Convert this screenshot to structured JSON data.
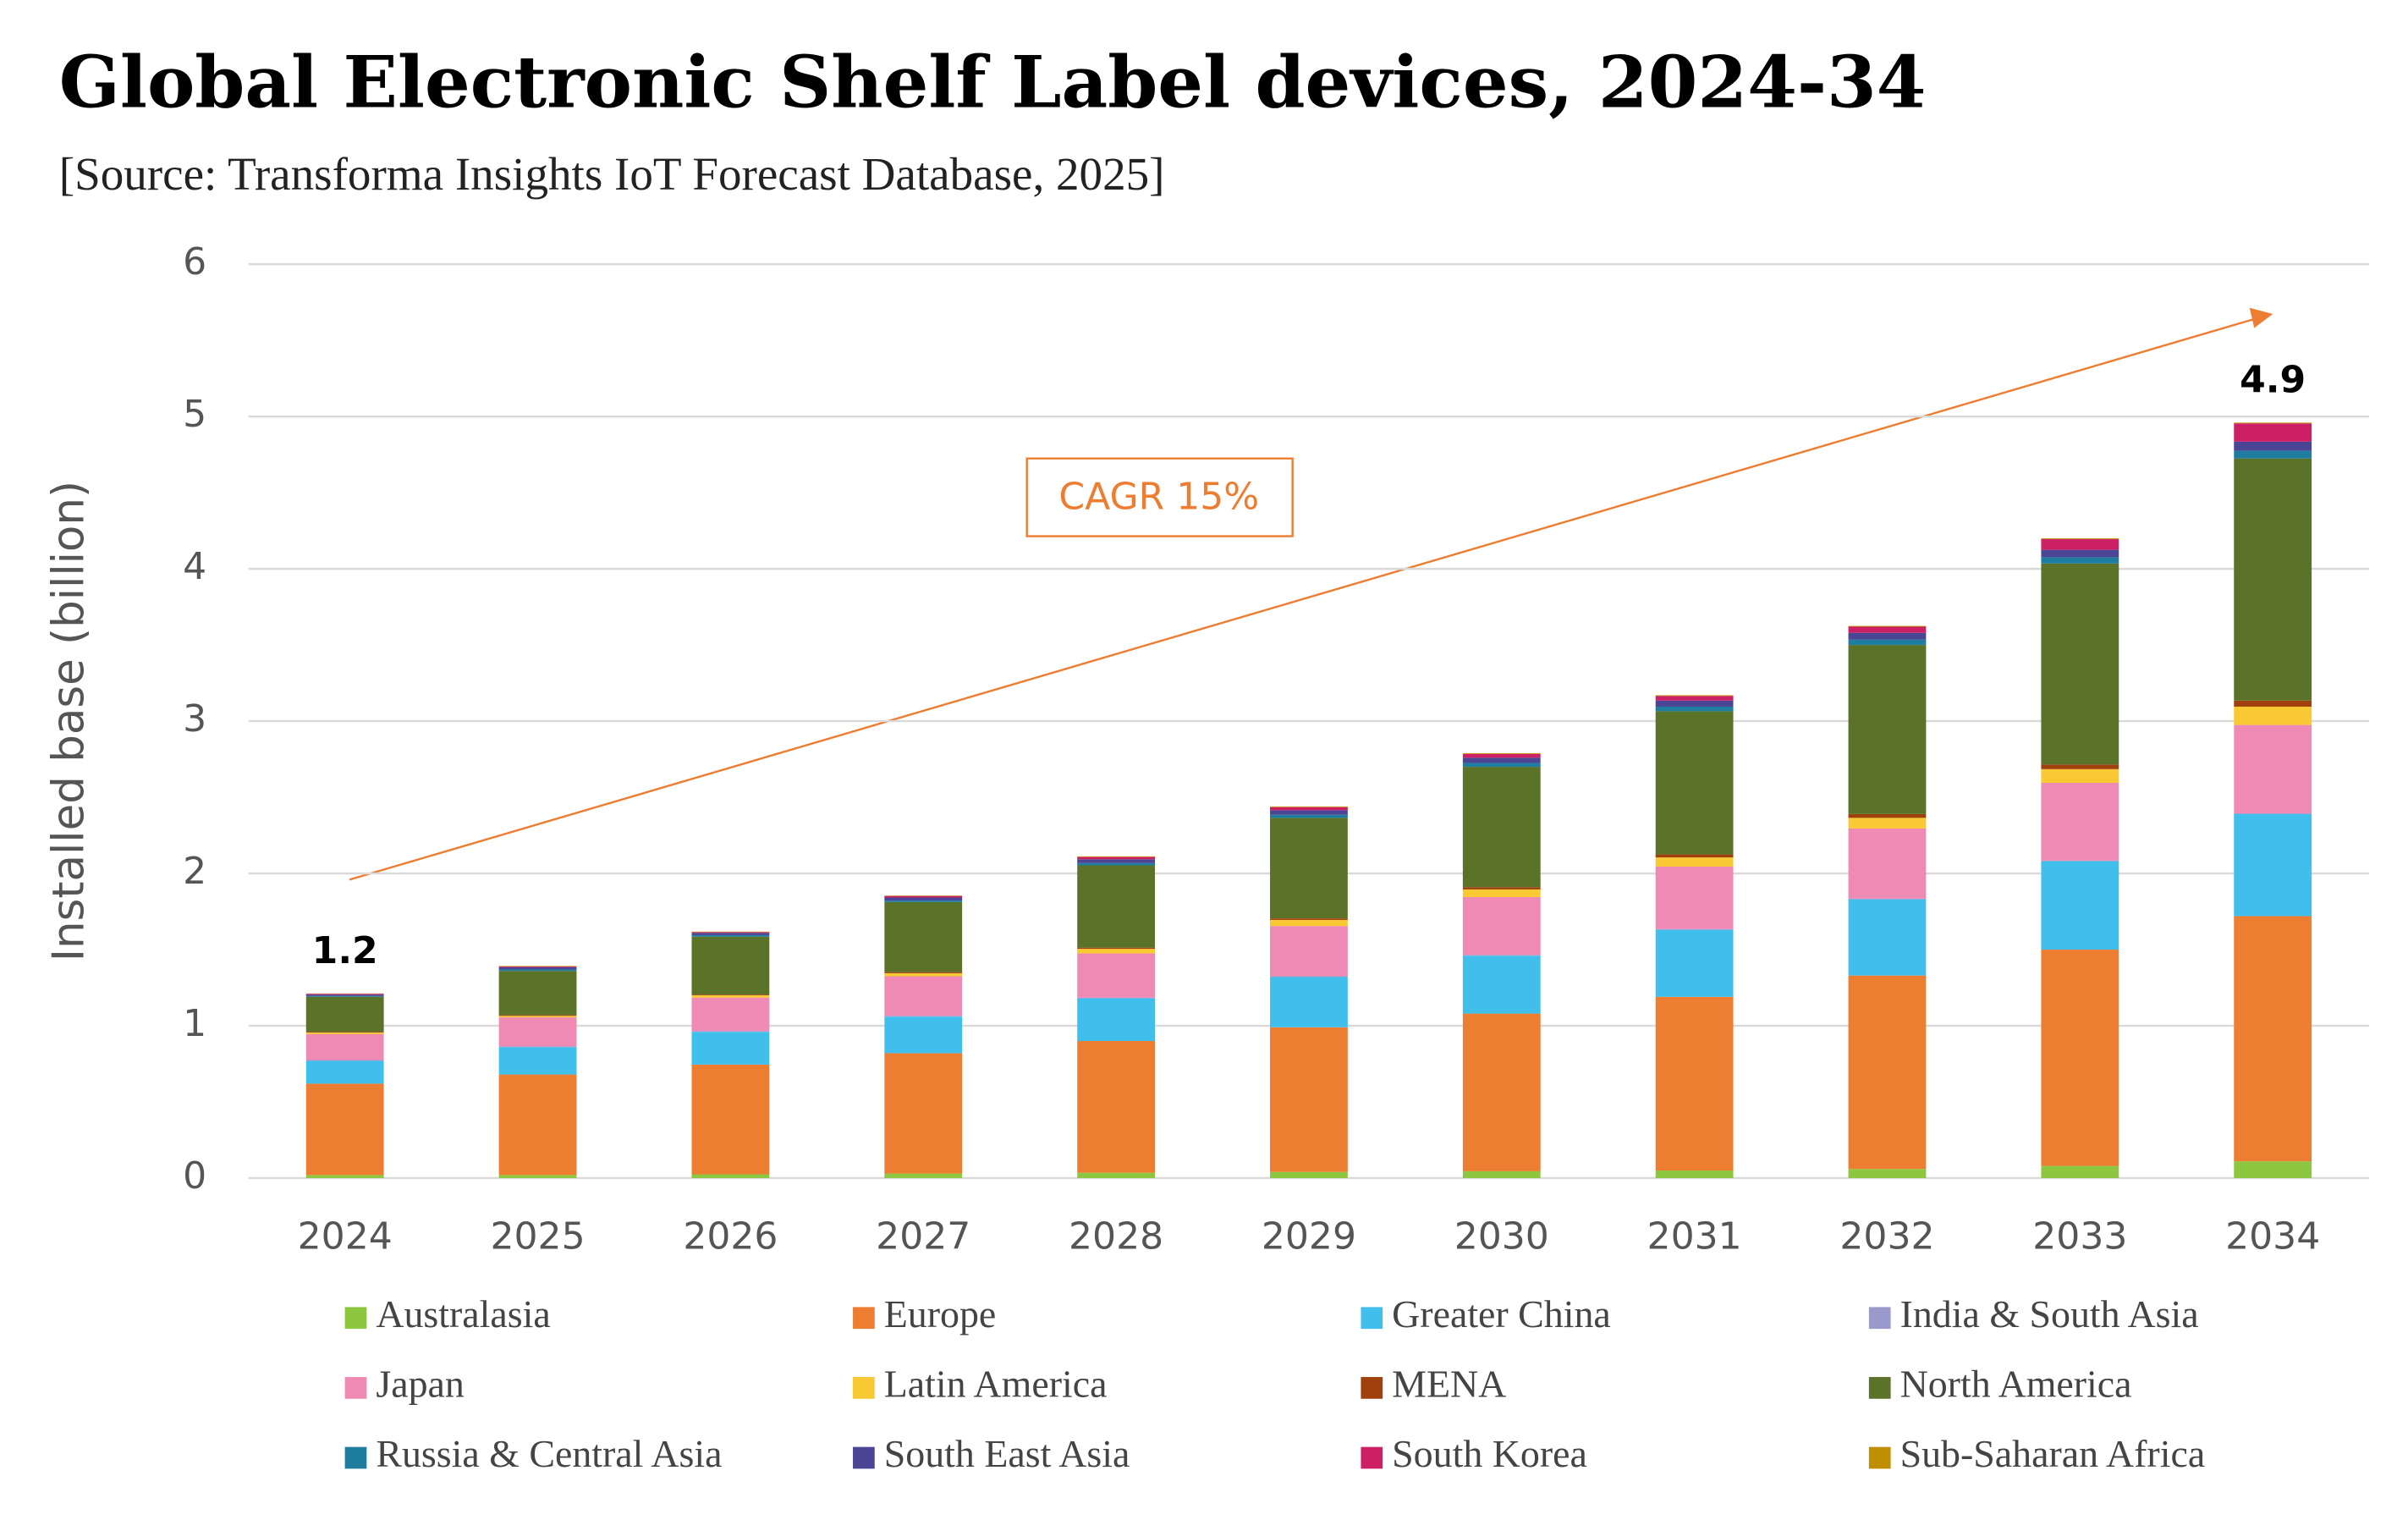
{
  "chart_data": {
    "type": "stacked_bar",
    "title": "Global Electronic Shelf Label devices, 2024-34",
    "subtitle": "[Source: Transforma Insights IoT Forecast Database, 2025]",
    "y_label": "Installed base (billion)",
    "categories": [
      "2024",
      "2025",
      "2026",
      "2027",
      "2028",
      "2029",
      "2030",
      "2031",
      "2032",
      "2033",
      "2034"
    ],
    "ylim": [
      0,
      6
    ],
    "yticks": [
      0,
      1,
      2,
      3,
      4,
      5,
      6
    ],
    "grid": true,
    "legend": "bottom",
    "series": [
      {
        "name": "Australasia",
        "color": "#8dc63f",
        "values": [
          0.02,
          0.02,
          0.025,
          0.03,
          0.035,
          0.04,
          0.045,
          0.05,
          0.06,
          0.08,
          0.11
        ]
      },
      {
        "name": "Europe",
        "color": "#ed7d31",
        "values": [
          0.6,
          0.66,
          0.72,
          0.79,
          0.865,
          0.95,
          1.035,
          1.14,
          1.27,
          1.42,
          1.61
        ]
      },
      {
        "name": "Greater China",
        "color": "#41bfec",
        "values": [
          0.15,
          0.18,
          0.215,
          0.24,
          0.28,
          0.33,
          0.38,
          0.44,
          0.5,
          0.58,
          0.67
        ]
      },
      {
        "name": "India & South Asia",
        "color": "#9999cc",
        "values": [
          0.005,
          0.005,
          0.005,
          0.005,
          0.005,
          0.005,
          0.005,
          0.005,
          0.005,
          0.005,
          0.005
        ]
      },
      {
        "name": "Japan",
        "color": "#ef8ab5",
        "values": [
          0.17,
          0.19,
          0.22,
          0.26,
          0.29,
          0.33,
          0.38,
          0.41,
          0.46,
          0.51,
          0.58
        ]
      },
      {
        "name": "Latin America",
        "color": "#f9c933",
        "values": [
          0.01,
          0.01,
          0.015,
          0.02,
          0.03,
          0.04,
          0.05,
          0.06,
          0.07,
          0.09,
          0.12
        ]
      },
      {
        "name": "MENA",
        "color": "#a0410d",
        "values": [
          0.005,
          0.005,
          0.005,
          0.007,
          0.008,
          0.01,
          0.015,
          0.02,
          0.025,
          0.03,
          0.04
        ]
      },
      {
        "name": "North America",
        "color": "#5a7328",
        "values": [
          0.23,
          0.29,
          0.38,
          0.46,
          0.54,
          0.66,
          0.79,
          0.94,
          1.11,
          1.32,
          1.59
        ]
      },
      {
        "name": "Russia & Central Asia",
        "color": "#1f7da0",
        "values": [
          0.005,
          0.01,
          0.01,
          0.01,
          0.015,
          0.02,
          0.025,
          0.03,
          0.035,
          0.04,
          0.05
        ]
      },
      {
        "name": "South East Asia",
        "color": "#4a4595",
        "values": [
          0.01,
          0.015,
          0.015,
          0.02,
          0.025,
          0.03,
          0.035,
          0.04,
          0.045,
          0.05,
          0.06
        ]
      },
      {
        "name": "South Korea",
        "color": "#cc1f66",
        "values": [
          0.005,
          0.005,
          0.005,
          0.01,
          0.015,
          0.02,
          0.025,
          0.03,
          0.04,
          0.07,
          0.12
        ]
      },
      {
        "name": "Sub-Saharan Africa",
        "color": "#bf8f00",
        "values": [
          0.002,
          0.003,
          0.003,
          0.003,
          0.004,
          0.005,
          0.005,
          0.005,
          0.005,
          0.005,
          0.005
        ]
      }
    ],
    "annotations": [
      {
        "x": "2024",
        "value": 1.2
      },
      {
        "x": "2034",
        "value": 4.9
      }
    ],
    "trend_label": "CAGR 15%"
  }
}
